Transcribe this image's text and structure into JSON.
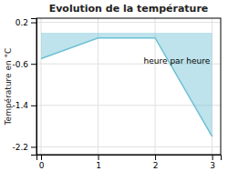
{
  "chart_data": {
    "type": "area",
    "title": "Evolution de la température",
    "ylabel": "Température en °C",
    "x": [
      0,
      1,
      2,
      3
    ],
    "values": [
      -0.5,
      -0.1,
      -0.1,
      -2.0
    ],
    "color": "#6ec0d4",
    "xlim": [
      -0.08,
      3.15
    ],
    "xticks": [
      0,
      1,
      2,
      3
    ],
    "ylim": [
      -2.35,
      0.28
    ],
    "yticks": [
      0.2,
      -0.6,
      -1.4,
      -2.2
    ],
    "grid": true,
    "annotations": [
      {
        "text": "heure par heure",
        "x": 1.8,
        "y": -0.55
      }
    ]
  }
}
